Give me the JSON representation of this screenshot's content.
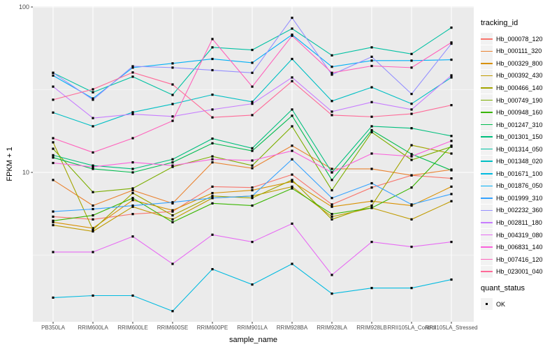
{
  "chart_data": {
    "type": "line",
    "title": "",
    "xlabel": "sample_name",
    "ylabel": "FPKM + 1",
    "y_scale": "log10",
    "ylim": [
      1.25,
      101
    ],
    "y_ticks": [
      100,
      10
    ],
    "y_minor_breaks": [
      31.62,
      3.162
    ],
    "grid": "on",
    "legend_position": "right",
    "legend_title": "tracking_id",
    "legend2_title": "quant_status",
    "legend2_items": [
      {
        "label": "OK",
        "marker": "black-square"
      }
    ],
    "point_marker": "black-square",
    "theme": {
      "panel_bg": "#EBEBEB",
      "grid_color": "#FFFFFF",
      "tick_color": "#333333",
      "tick_label_color": "#4D4D4D",
      "legend_key_bg": "#F2F2F2",
      "marker_color": "#000000"
    },
    "categories": [
      "PB350LA",
      "RRIM600LA",
      "RRIM600LE",
      "RRIM600SE",
      "RRIM600PE",
      "RRIM901LA",
      "RRIM928BA",
      "RRIM928LA",
      "RRIM928LB",
      "RRII105LA_Control",
      "RRII105LA_Stressed"
    ],
    "series": [
      {
        "name": "Hb_000078_120",
        "color": "#F8766D",
        "values": [
          5.4,
          5.2,
          5.6,
          5.8,
          8.2,
          8.1,
          9.7,
          6.4,
          8.1,
          9.6,
          9.2
        ]
      },
      {
        "name": "Hb_000111_320",
        "color": "#EA8331",
        "values": [
          9.0,
          6.3,
          7.8,
          6.5,
          11.5,
          10.6,
          14.5,
          10.5,
          10.5,
          9.6,
          10.4
        ]
      },
      {
        "name": "Hb_000329_800",
        "color": "#D89000",
        "values": [
          5.0,
          4.6,
          6.8,
          5.9,
          7.5,
          7.8,
          8.8,
          6.2,
          6.7,
          6.3,
          8.2
        ]
      },
      {
        "name": "Hb_000392_430",
        "color": "#C09B00",
        "values": [
          4.8,
          4.4,
          6.2,
          5.2,
          7.0,
          7.2,
          8.2,
          5.4,
          6.1,
          5.2,
          6.7
        ]
      },
      {
        "name": "Hb_000466_140",
        "color": "#A3A500",
        "values": [
          15.2,
          4.5,
          7.5,
          5.5,
          7.2,
          7.0,
          9.0,
          5.2,
          6.3,
          14.6,
          13.0
        ]
      },
      {
        "name": "Hb_000749_190",
        "color": "#7CAE00",
        "values": [
          13.9,
          7.6,
          8.0,
          10.8,
          12.5,
          11.0,
          19.0,
          7.8,
          17.5,
          11.9,
          14.3
        ]
      },
      {
        "name": "Hb_000948_160",
        "color": "#39B600",
        "values": [
          5.1,
          5.5,
          7.0,
          5.0,
          6.5,
          6.3,
          8.0,
          5.6,
          6.1,
          8.1,
          14.5
        ]
      },
      {
        "name": "Hb_001247_310",
        "color": "#00BB4E",
        "values": [
          12.3,
          10.5,
          10.0,
          11.5,
          15.0,
          13.5,
          22.0,
          9.0,
          18.0,
          12.9,
          10.3
        ]
      },
      {
        "name": "Hb_001301_150",
        "color": "#00BF7D",
        "values": [
          12.7,
          11.0,
          10.5,
          12.0,
          16.0,
          14.0,
          24.0,
          10.0,
          19.0,
          18.5,
          16.6
        ]
      },
      {
        "name": "Hb_001314_050",
        "color": "#00C1A3",
        "values": [
          40,
          30.5,
          37.9,
          29.4,
          57,
          55,
          74,
          51,
          57,
          52,
          75
        ]
      },
      {
        "name": "Hb_001348_020",
        "color": "#00BFC4",
        "values": [
          23,
          19.0,
          23.1,
          25.9,
          29.5,
          26.7,
          48.5,
          27,
          32.7,
          26,
          37.5
        ]
      },
      {
        "name": "Hb_001671_100",
        "color": "#00BAE0",
        "values": [
          1.75,
          1.8,
          1.8,
          1.45,
          2.6,
          2.1,
          2.8,
          1.85,
          2.0,
          2.0,
          2.25
        ]
      },
      {
        "name": "Hb_001876_050",
        "color": "#00B0F6",
        "values": [
          38.5,
          28,
          43,
          45.6,
          48.5,
          46,
          68,
          43.5,
          47.4,
          47.4,
          48
        ]
      },
      {
        "name": "Hb_001999_310",
        "color": "#35A2FF",
        "values": [
          5.8,
          6.0,
          6.3,
          6.6,
          7.0,
          7.2,
          12.0,
          7.0,
          8.6,
          6.4,
          7.4
        ]
      },
      {
        "name": "Hb_002232_360",
        "color": "#9590FF",
        "values": [
          40,
          27.5,
          43.8,
          43,
          41.5,
          40,
          86,
          39,
          50,
          29.8,
          60
        ]
      },
      {
        "name": "Hb_002811_180",
        "color": "#C77CFF",
        "values": [
          33,
          21.3,
          22.5,
          21.8,
          24,
          26,
          37.5,
          23.3,
          26.6,
          24,
          38.6
        ]
      },
      {
        "name": "Hb_004319_080",
        "color": "#E76BF3",
        "values": [
          3.3,
          3.3,
          4.1,
          2.8,
          4.2,
          3.8,
          4.9,
          2.4,
          3.8,
          3.55,
          3.8
        ]
      },
      {
        "name": "Hb_006831_140",
        "color": "#FA62DB",
        "values": [
          11.4,
          10.8,
          11.5,
          11.0,
          12.0,
          11.8,
          13.5,
          10.0,
          13.0,
          12.5,
          15.5
        ]
      },
      {
        "name": "Hb_007416_120",
        "color": "#FF62BC",
        "values": [
          16.1,
          13.2,
          16.1,
          20.5,
          64,
          33,
          67,
          40,
          44,
          43,
          61
        ]
      },
      {
        "name": "Hb_023001_040",
        "color": "#FF6A98",
        "values": [
          27.5,
          31.8,
          40.2,
          34,
          21.5,
          22.2,
          35.6,
          22.2,
          21.7,
          22.6,
          25.5
        ]
      }
    ]
  }
}
